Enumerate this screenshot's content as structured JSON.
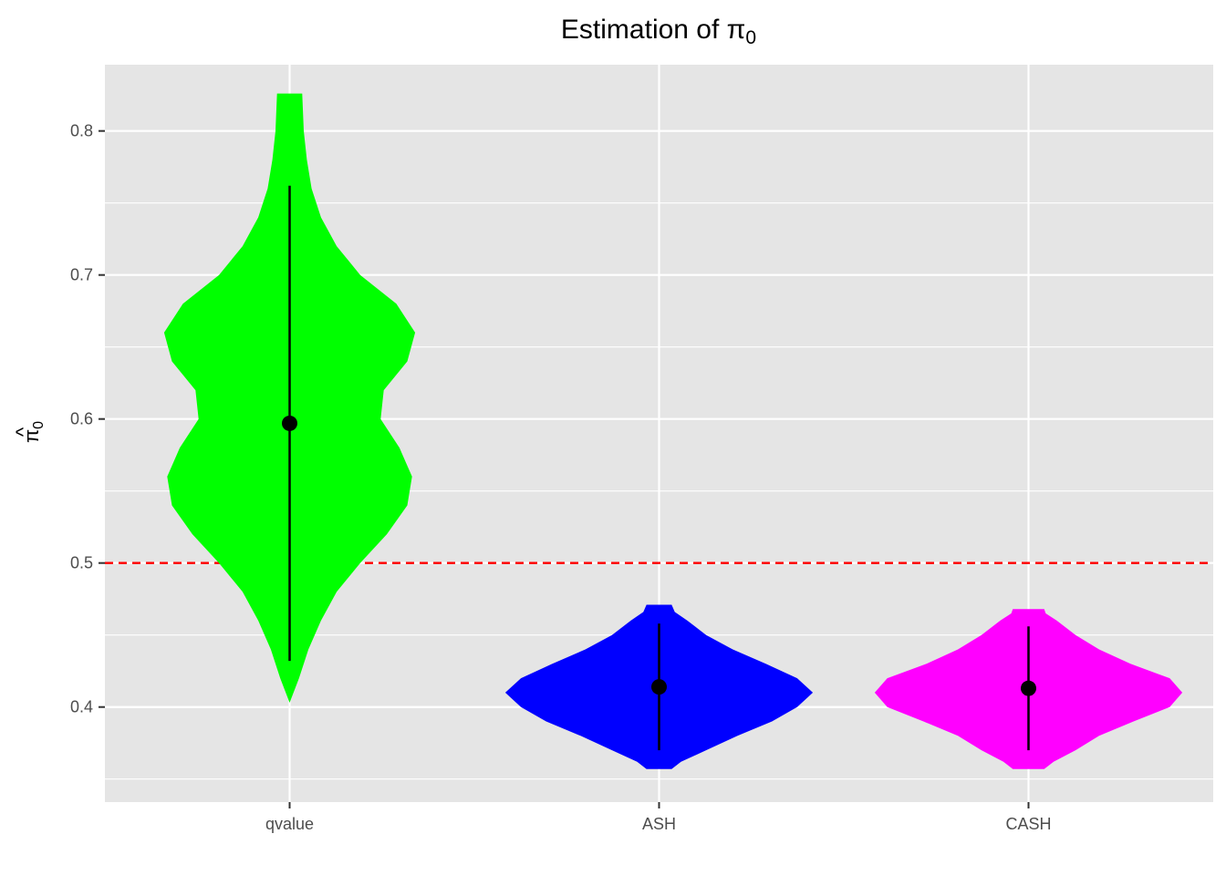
{
  "chart_data": {
    "type": "violin",
    "title": "Estimation of π",
    "title_subscript": "0",
    "ylabel": "π",
    "ylabel_hat": "^",
    "ylabel_subscript": "0",
    "xlabel": "",
    "ylim": [
      0.334,
      0.846
    ],
    "y_ticks": [
      0.4,
      0.5,
      0.6,
      0.7,
      0.8
    ],
    "y_tick_labels": [
      "0.4",
      "0.5",
      "0.6",
      "0.7",
      "0.8"
    ],
    "y_minor_ticks": [
      0.35,
      0.45,
      0.55,
      0.65,
      0.75
    ],
    "categories": [
      "qvalue",
      "ASH",
      "CASH"
    ],
    "reference_line": {
      "y": 0.5,
      "style": "dashed",
      "color": "#ff0000"
    },
    "grid": true,
    "panel_background": "#e5e5e5",
    "series": [
      {
        "category": "qvalue",
        "color": "#00ff00",
        "point": 0.597,
        "range": [
          0.432,
          0.762
        ],
        "y_min": 0.403,
        "y_max": 0.826,
        "density": [
          [
            0.403,
            0.0
          ],
          [
            0.42,
            0.06
          ],
          [
            0.44,
            0.12
          ],
          [
            0.46,
            0.2
          ],
          [
            0.48,
            0.3
          ],
          [
            0.5,
            0.45
          ],
          [
            0.52,
            0.62
          ],
          [
            0.54,
            0.75
          ],
          [
            0.56,
            0.78
          ],
          [
            0.58,
            0.7
          ],
          [
            0.6,
            0.58
          ],
          [
            0.62,
            0.6
          ],
          [
            0.64,
            0.75
          ],
          [
            0.66,
            0.8
          ],
          [
            0.68,
            0.68
          ],
          [
            0.7,
            0.45
          ],
          [
            0.72,
            0.3
          ],
          [
            0.74,
            0.2
          ],
          [
            0.76,
            0.14
          ],
          [
            0.78,
            0.11
          ],
          [
            0.8,
            0.09
          ],
          [
            0.826,
            0.08
          ]
        ]
      },
      {
        "category": "ASH",
        "color": "#0000ff",
        "point": 0.414,
        "range": [
          0.37,
          0.458
        ],
        "y_min": 0.357,
        "y_max": 0.471,
        "density": [
          [
            0.357,
            0.08
          ],
          [
            0.362,
            0.14
          ],
          [
            0.37,
            0.3
          ],
          [
            0.38,
            0.5
          ],
          [
            0.39,
            0.72
          ],
          [
            0.4,
            0.88
          ],
          [
            0.41,
            0.98
          ],
          [
            0.42,
            0.88
          ],
          [
            0.43,
            0.68
          ],
          [
            0.44,
            0.47
          ],
          [
            0.45,
            0.3
          ],
          [
            0.46,
            0.18
          ],
          [
            0.466,
            0.1
          ],
          [
            0.471,
            0.08
          ]
        ]
      },
      {
        "category": "CASH",
        "color": "#ff00ff",
        "point": 0.413,
        "range": [
          0.37,
          0.456
        ],
        "y_min": 0.357,
        "y_max": 0.468,
        "density": [
          [
            0.357,
            0.1
          ],
          [
            0.362,
            0.16
          ],
          [
            0.37,
            0.3
          ],
          [
            0.38,
            0.45
          ],
          [
            0.39,
            0.67
          ],
          [
            0.4,
            0.9
          ],
          [
            0.41,
            0.98
          ],
          [
            0.42,
            0.9
          ],
          [
            0.43,
            0.65
          ],
          [
            0.44,
            0.45
          ],
          [
            0.45,
            0.3
          ],
          [
            0.46,
            0.18
          ],
          [
            0.465,
            0.11
          ],
          [
            0.468,
            0.1
          ]
        ]
      }
    ]
  }
}
